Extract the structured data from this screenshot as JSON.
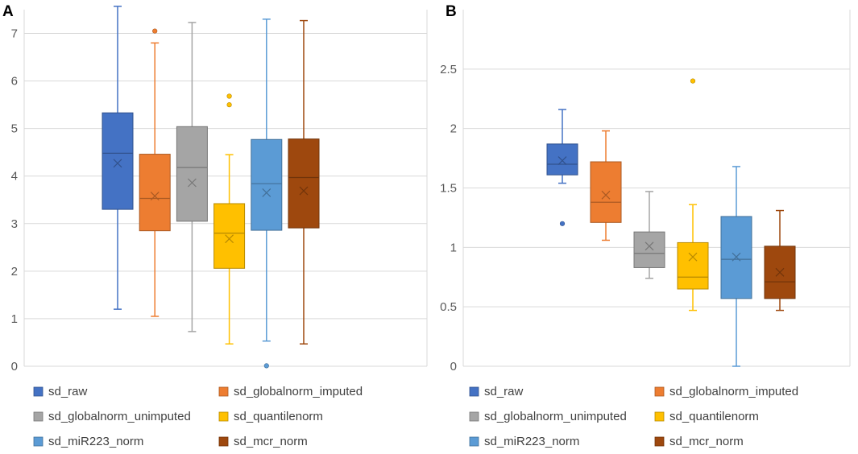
{
  "chart_data": [
    {
      "type": "box",
      "panel_label": "A",
      "ylim": [
        0,
        7.5
      ],
      "yticks": [
        0,
        1,
        2,
        3,
        4,
        5,
        6,
        7
      ],
      "grid": "horizontal",
      "legend_placement": "bottom",
      "series": [
        {
          "name": "sd_raw",
          "color": "#4472C4",
          "min": 1.2,
          "q1": 3.3,
          "median": 4.48,
          "q3": 5.33,
          "max": 7.57,
          "mean": 4.27,
          "outliers": []
        },
        {
          "name": "sd_globalnorm_imputed",
          "color": "#ED7D31",
          "min": 1.05,
          "q1": 2.85,
          "median": 3.53,
          "q3": 4.46,
          "max": 6.8,
          "mean": 3.58,
          "outliers": [
            7.05
          ]
        },
        {
          "name": "sd_globalnorm_unimputed",
          "color": "#A5A5A5",
          "min": 0.73,
          "q1": 3.05,
          "median": 4.18,
          "q3": 5.04,
          "max": 7.23,
          "mean": 3.86,
          "outliers": []
        },
        {
          "name": "sd_quantilenorm",
          "color": "#FFC000",
          "min": 0.47,
          "q1": 2.06,
          "median": 2.8,
          "q3": 3.42,
          "max": 4.45,
          "mean": 2.68,
          "outliers": [
            5.5,
            5.68
          ]
        },
        {
          "name": "sd_miR223_norm",
          "color": "#5B9BD5",
          "min": 0.53,
          "q1": 2.86,
          "median": 3.84,
          "q3": 4.77,
          "max": 7.3,
          "mean": 3.65,
          "outliers": [
            0.01
          ]
        },
        {
          "name": "sd_mcr_norm",
          "color": "#9E480E",
          "min": 0.47,
          "q1": 2.91,
          "median": 3.97,
          "q3": 4.78,
          "max": 7.27,
          "mean": 3.69,
          "outliers": []
        }
      ]
    },
    {
      "type": "box",
      "panel_label": "B",
      "ylim": [
        0,
        3
      ],
      "yticks": [
        0,
        0.5,
        1,
        1.5,
        2,
        2.5
      ],
      "grid": "horizontal",
      "legend_placement": "bottom",
      "series": [
        {
          "name": "sd_raw",
          "color": "#4472C4",
          "min": 1.54,
          "q1": 1.61,
          "median": 1.7,
          "q3": 1.87,
          "max": 2.16,
          "mean": 1.73,
          "outliers": [
            1.2
          ]
        },
        {
          "name": "sd_globalnorm_imputed",
          "color": "#ED7D31",
          "min": 1.06,
          "q1": 1.21,
          "median": 1.38,
          "q3": 1.72,
          "max": 1.98,
          "mean": 1.44,
          "outliers": []
        },
        {
          "name": "sd_globalnorm_unimputed",
          "color": "#A5A5A5",
          "min": 0.74,
          "q1": 0.83,
          "median": 0.95,
          "q3": 1.13,
          "max": 1.47,
          "mean": 1.01,
          "outliers": []
        },
        {
          "name": "sd_quantilenorm",
          "color": "#FFC000",
          "min": 0.47,
          "q1": 0.65,
          "median": 0.75,
          "q3": 1.04,
          "max": 1.36,
          "mean": 0.92,
          "outliers": [
            2.4
          ]
        },
        {
          "name": "sd_miR223_norm",
          "color": "#5B9BD5",
          "min": 0.0,
          "q1": 0.57,
          "median": 0.9,
          "q3": 1.26,
          "max": 1.68,
          "mean": 0.92,
          "outliers": []
        },
        {
          "name": "sd_mcr_norm",
          "color": "#9E480E",
          "min": 0.47,
          "q1": 0.57,
          "median": 0.71,
          "q3": 1.01,
          "max": 1.31,
          "mean": 0.79,
          "outliers": []
        }
      ]
    }
  ]
}
